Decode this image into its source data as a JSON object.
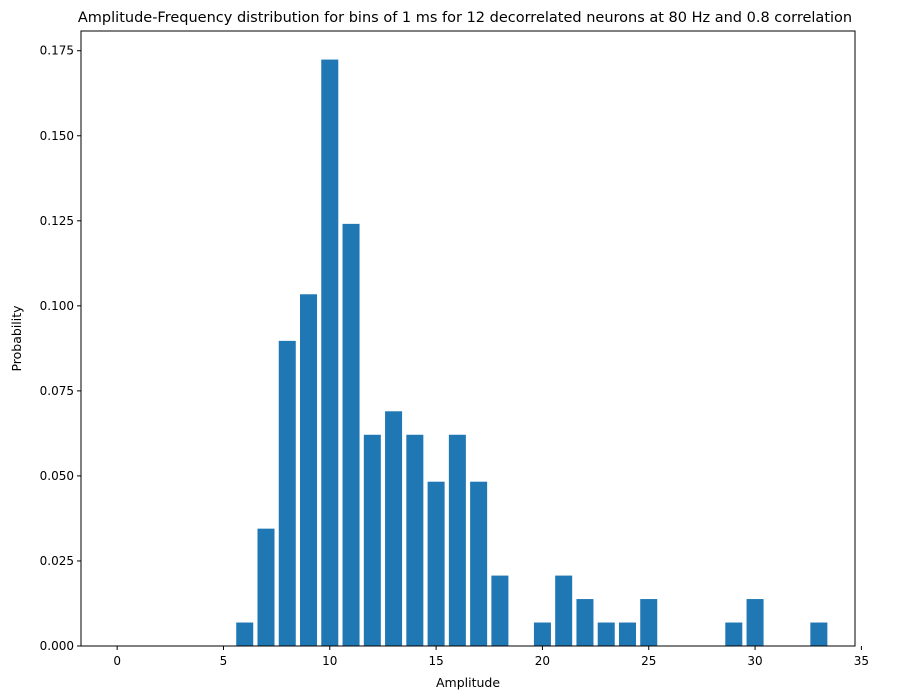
{
  "chart_data": {
    "type": "bar",
    "title": "Amplitude-Frequency distribution for bins of 1 ms for 12 decorrelated neurons at 80 Hz and 0.8 correlation",
    "xlabel": "Amplitude",
    "ylabel": "Probability",
    "xlim": [
      -1.7,
      34.7
    ],
    "ylim": [
      0,
      0.1808
    ],
    "xticks": [
      0,
      5,
      10,
      15,
      20,
      25,
      30,
      35
    ],
    "xtick_labels": [
      "0",
      "5",
      "10",
      "15",
      "20",
      "25",
      "30",
      "35"
    ],
    "yticks": [
      0.0,
      0.025,
      0.05,
      0.075,
      0.1,
      0.125,
      0.15,
      0.175
    ],
    "ytick_labels": [
      "0.000",
      "0.025",
      "0.050",
      "0.075",
      "0.100",
      "0.125",
      "0.150",
      "0.175"
    ],
    "bar_color": "#1f77b4",
    "bar_width": 0.8,
    "grid": false,
    "x": [
      6,
      7,
      8,
      9,
      10,
      11,
      12,
      13,
      14,
      15,
      16,
      17,
      18,
      20,
      21,
      22,
      23,
      24,
      25,
      29,
      30,
      33
    ],
    "values": [
      0.0069,
      0.0345,
      0.0897,
      0.1034,
      0.1724,
      0.1241,
      0.0621,
      0.069,
      0.0621,
      0.0483,
      0.0621,
      0.0483,
      0.0207,
      0.0069,
      0.0207,
      0.0138,
      0.0069,
      0.0069,
      0.0138,
      0.0069,
      0.0138,
      0.0069
    ]
  }
}
